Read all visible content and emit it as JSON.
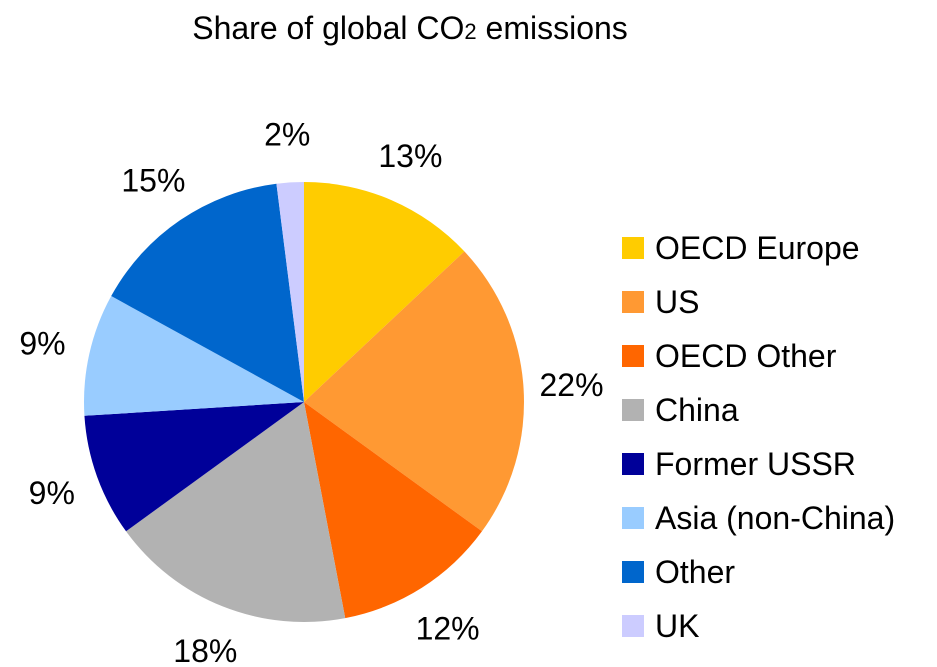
{
  "chart_data": {
    "type": "pie",
    "title": {
      "prefix": "Share of global CO",
      "subscript": "2",
      "suffix": " emissions"
    },
    "legend_position": "right",
    "slices": [
      {
        "label": "OECD Europe",
        "value": 13,
        "display": "13%",
        "color": "#ffcc00"
      },
      {
        "label": "US",
        "value": 22,
        "display": "22%",
        "color": "#ff9933"
      },
      {
        "label": "OECD Other",
        "value": 12,
        "display": "12%",
        "color": "#ff6600"
      },
      {
        "label": "China",
        "value": 18,
        "display": "18%",
        "color": "#b2b2b2"
      },
      {
        "label": "Former USSR",
        "value": 9,
        "display": "9%",
        "color": "#000099"
      },
      {
        "label": "Asia (non-China)",
        "value": 9,
        "display": "9%",
        "color": "#99ccff"
      },
      {
        "label": "Other",
        "value": 15,
        "display": "15%",
        "color": "#0066cc"
      },
      {
        "label": "UK",
        "value": 2,
        "display": "2%",
        "color": "#ccccff"
      }
    ]
  }
}
